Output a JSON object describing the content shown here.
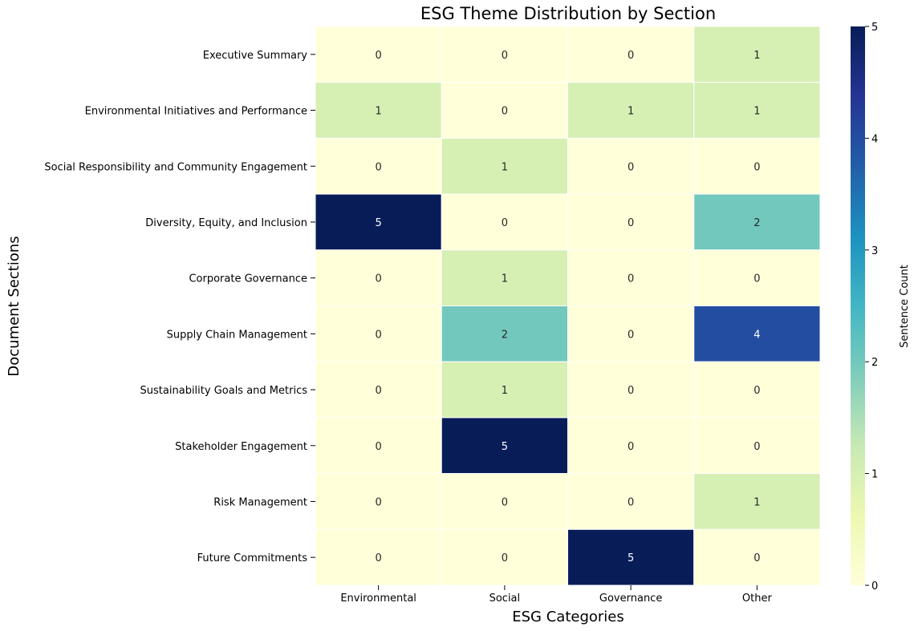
{
  "chart_data": {
    "type": "heatmap",
    "title": "ESG Theme Distribution by Section",
    "xlabel": "ESG Categories",
    "ylabel": "Document Sections",
    "x_categories": [
      "Environmental",
      "Social",
      "Governance",
      "Other"
    ],
    "y_categories": [
      "Executive Summary",
      "Environmental Initiatives and Performance",
      "Social Responsibility and Community Engagement",
      "Diversity, Equity, and Inclusion",
      "Corporate Governance",
      "Supply Chain Management",
      "Sustainability Goals and Metrics",
      "Stakeholder Engagement",
      "Risk Management",
      "Future Commitments"
    ],
    "values": [
      [
        0,
        0,
        0,
        1
      ],
      [
        1,
        0,
        1,
        1
      ],
      [
        0,
        1,
        0,
        0
      ],
      [
        5,
        0,
        0,
        2
      ],
      [
        0,
        1,
        0,
        0
      ],
      [
        0,
        2,
        0,
        4
      ],
      [
        0,
        1,
        0,
        0
      ],
      [
        0,
        5,
        0,
        0
      ],
      [
        0,
        0,
        0,
        1
      ],
      [
        0,
        0,
        5,
        0
      ]
    ],
    "colorbar": {
      "label": "Sentence Count",
      "range": [
        0,
        5
      ],
      "ticks": [
        "0",
        "1",
        "2",
        "3",
        "4",
        "5"
      ]
    },
    "colormap": "YlGnBu",
    "annotate": true,
    "grid": false
  }
}
